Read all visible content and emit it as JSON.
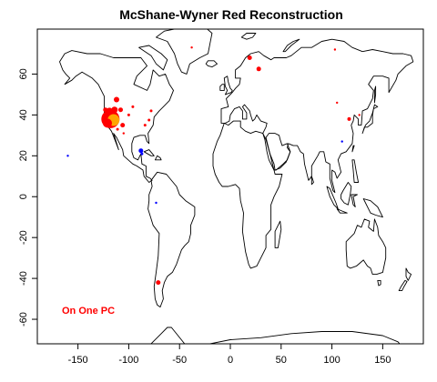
{
  "chart_data": {
    "type": "scatter",
    "title": "McShane-Wyner Red Reconstruction",
    "annotation": "On One PC",
    "projection": "longitude-latitude",
    "xlim": [
      -190,
      190
    ],
    "ylim": [
      -72,
      82
    ],
    "x_ticks": [
      -150,
      -100,
      -50,
      0,
      50,
      100,
      150
    ],
    "y_ticks": [
      60,
      40,
      20,
      0,
      -20,
      -40,
      -60
    ],
    "x_tick_labels": [
      "-150",
      "-100",
      "-50",
      "0",
      "50",
      "100",
      "150"
    ],
    "y_tick_labels": [
      "60",
      "40",
      "20",
      "0",
      "-20",
      "-40",
      "-60"
    ],
    "grid": false,
    "colors": {
      "red": "#ff0000",
      "orange": "#ffa500",
      "blue": "#0000ff",
      "coast": "#000000"
    },
    "points": [
      {
        "lon": -118,
        "lat": 38,
        "size": 10,
        "color": "red"
      },
      {
        "lon": -115,
        "lat": 37.5,
        "size": 6.5,
        "color": "orange"
      },
      {
        "lon": -121,
        "lat": 36,
        "size": 5,
        "color": "red"
      },
      {
        "lon": -119,
        "lat": 42,
        "size": 3.5,
        "color": "red"
      },
      {
        "lon": -114,
        "lat": 42.5,
        "size": 3.5,
        "color": "red"
      },
      {
        "lon": -108,
        "lat": 42.5,
        "size": 2.5,
        "color": "red"
      },
      {
        "lon": -112,
        "lat": 47.5,
        "size": 3,
        "color": "red"
      },
      {
        "lon": -123,
        "lat": 42.5,
        "size": 2.5,
        "color": "red"
      },
      {
        "lon": -106,
        "lat": 35,
        "size": 2.5,
        "color": "red"
      },
      {
        "lon": -100,
        "lat": 40,
        "size": 1.5,
        "color": "red"
      },
      {
        "lon": -96,
        "lat": 44,
        "size": 1.5,
        "color": "red"
      },
      {
        "lon": -111,
        "lat": 33,
        "size": 1.5,
        "color": "red"
      },
      {
        "lon": -80,
        "lat": 37.5,
        "size": 1.5,
        "color": "red"
      },
      {
        "lon": -84,
        "lat": 35,
        "size": 1.5,
        "color": "red"
      },
      {
        "lon": -78,
        "lat": 42,
        "size": 1.5,
        "color": "red"
      },
      {
        "lon": -105,
        "lat": 31,
        "size": 1.2,
        "color": "red"
      },
      {
        "lon": -88,
        "lat": 22.5,
        "size": 2.5,
        "color": "blue"
      },
      {
        "lon": -87,
        "lat": 21,
        "size": 1.5,
        "color": "blue"
      },
      {
        "lon": -160,
        "lat": 20,
        "size": 1.2,
        "color": "blue"
      },
      {
        "lon": -73,
        "lat": -3,
        "size": 1.2,
        "color": "blue"
      },
      {
        "lon": -71,
        "lat": -42,
        "size": 2.5,
        "color": "red"
      },
      {
        "lon": 19,
        "lat": 68,
        "size": 2.5,
        "color": "red"
      },
      {
        "lon": 28,
        "lat": 62.5,
        "size": 2.5,
        "color": "red"
      },
      {
        "lon": -38,
        "lat": 73,
        "size": 1.2,
        "color": "red"
      },
      {
        "lon": 103,
        "lat": 72,
        "size": 1.2,
        "color": "red"
      },
      {
        "lon": 117,
        "lat": 38,
        "size": 2,
        "color": "red"
      },
      {
        "lon": 105,
        "lat": 46,
        "size": 1.2,
        "color": "red"
      },
      {
        "lon": 127,
        "lat": 40,
        "size": 1.2,
        "color": "red"
      },
      {
        "lon": 110,
        "lat": 27,
        "size": 1.2,
        "color": "blue"
      }
    ]
  }
}
